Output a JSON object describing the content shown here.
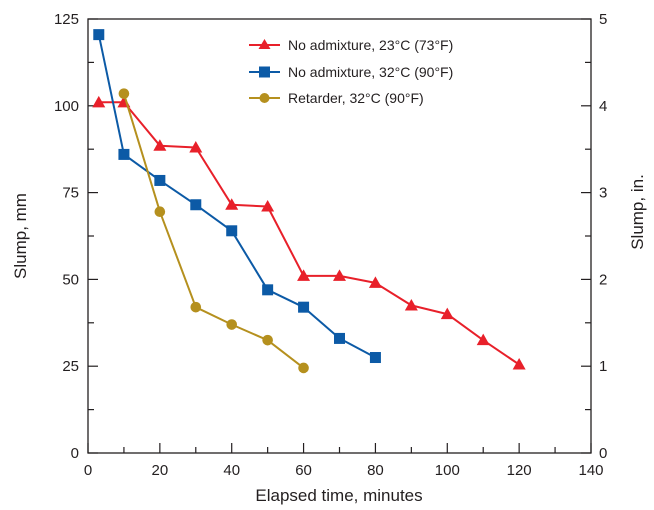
{
  "chart_data": {
    "type": "line",
    "xlabel": "Elapsed time, minutes",
    "ylabel": "Slump, mm",
    "ylabel_right": "Slump, in.",
    "xlim": [
      0,
      140
    ],
    "ylim": [
      0,
      125
    ],
    "ylim_right": [
      0,
      5
    ],
    "x_ticks": [
      "0",
      "20",
      "40",
      "60",
      "80",
      "100",
      "120",
      "140"
    ],
    "y_ticks": [
      "0",
      "25",
      "50",
      "75",
      "100",
      "125"
    ],
    "y_right_ticks": [
      "0",
      "1",
      "2",
      "3",
      "4",
      "5"
    ],
    "grid": false,
    "legend_position": "top-right",
    "series": [
      {
        "name": "No admixture, 23°C (73°F)",
        "color": "#e8202a",
        "marker": "triangle",
        "points": [
          [
            3,
            101
          ],
          [
            10,
            101
          ],
          [
            20,
            88.5
          ],
          [
            30,
            88
          ],
          [
            40,
            71.5
          ],
          [
            50,
            71
          ],
          [
            60,
            51
          ],
          [
            70,
            51
          ],
          [
            80,
            49
          ],
          [
            90,
            42.5
          ],
          [
            100,
            40
          ],
          [
            110,
            32.5
          ],
          [
            120,
            25.5
          ]
        ]
      },
      {
        "name": "No admixture, 32°C (90°F)",
        "color": "#0c5aa6",
        "marker": "square",
        "points": [
          [
            3,
            120.5
          ],
          [
            10,
            86
          ],
          [
            20,
            78.5
          ],
          [
            30,
            71.5
          ],
          [
            40,
            64
          ],
          [
            50,
            47
          ],
          [
            60,
            42
          ],
          [
            70,
            33
          ],
          [
            80,
            27.5
          ]
        ]
      },
      {
        "name": "Retarder, 32°C (90°F)",
        "color": "#b5901e",
        "marker": "circle",
        "points": [
          [
            10,
            103.5
          ],
          [
            20,
            69.5
          ],
          [
            30,
            42
          ],
          [
            40,
            37
          ],
          [
            50,
            32.5
          ],
          [
            60,
            24.5
          ]
        ]
      }
    ]
  }
}
